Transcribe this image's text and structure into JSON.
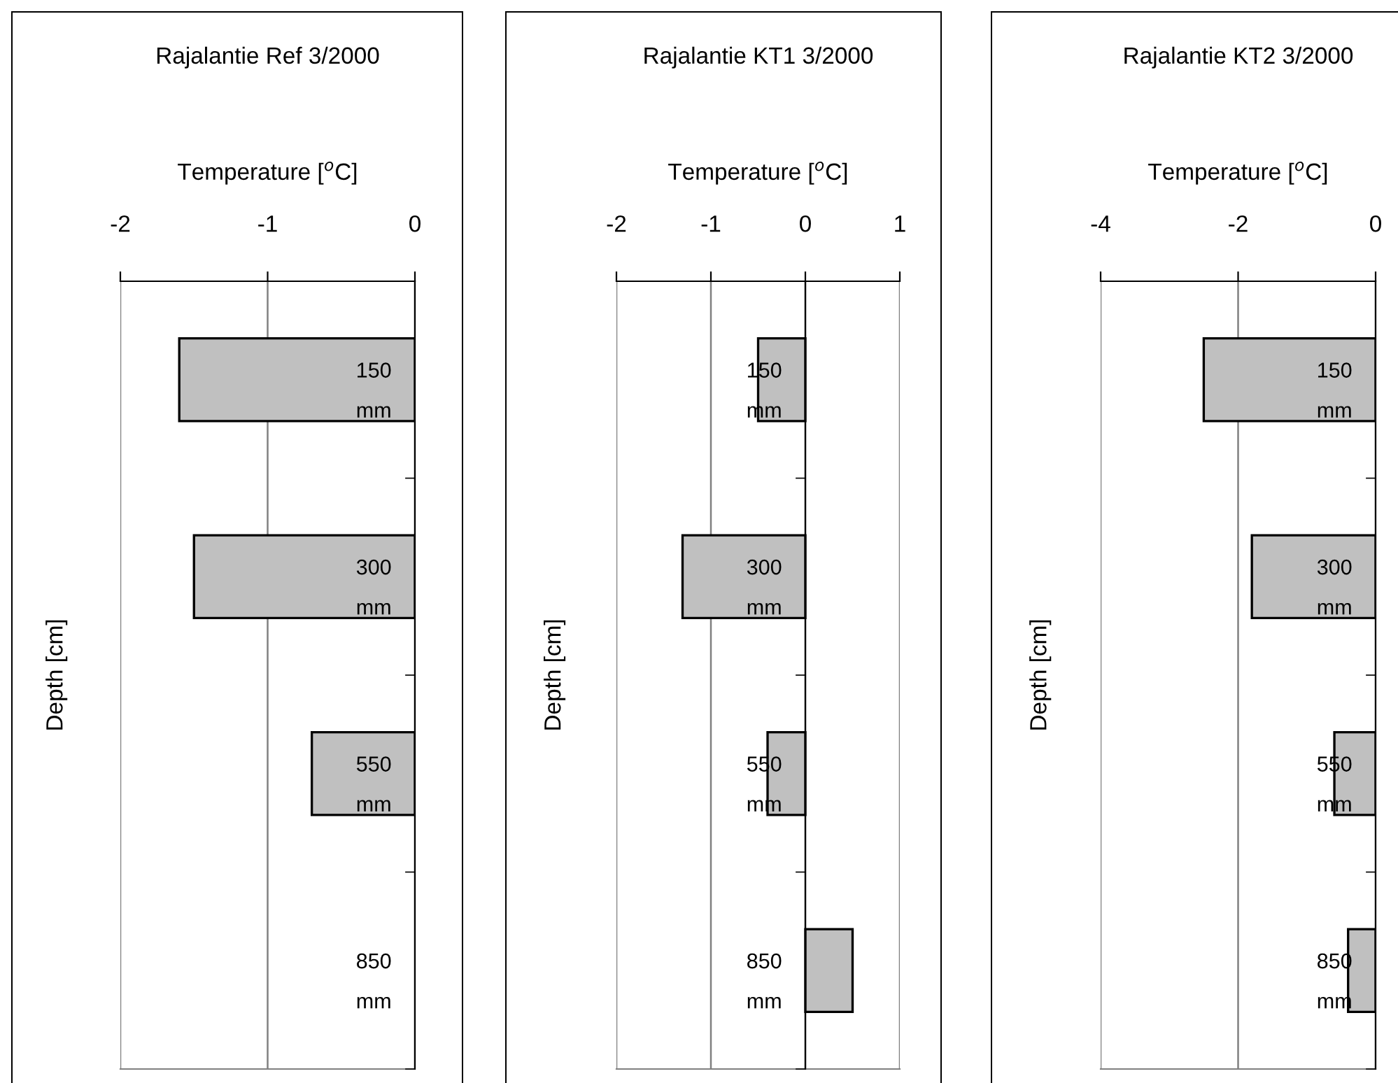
{
  "chart_data": [
    {
      "type": "bar",
      "orientation": "horizontal",
      "title": "Rajalantie Ref 3/2000",
      "xlabel": "Temperature [$^{o}$C]",
      "ylabel": "Depth [cm]",
      "categories": [
        "150\nmm",
        "300\nmm",
        "550\nmm",
        "850\nmm"
      ],
      "values": [
        -1.6,
        -1.5,
        -0.7,
        null
      ],
      "color": "#c0c0c0",
      "xlim": [
        -2,
        0
      ],
      "xticks": [
        -2,
        -1,
        0
      ],
      "grid": "x"
    },
    {
      "type": "bar",
      "orientation": "horizontal",
      "title": "Rajalantie KT1 3/2000",
      "xlabel": "Temperature [$^{o}$C]",
      "ylabel": "Depth [cm]",
      "categories": [
        "150\nmm",
        "300\nmm",
        "550\nmm",
        "850\nmm"
      ],
      "values": [
        -0.5,
        -1.3,
        -0.4,
        0.5
      ],
      "color": "#c0c0c0",
      "xlim": [
        -2,
        1
      ],
      "xticks": [
        -2,
        -1,
        0,
        1
      ],
      "grid": "x"
    },
    {
      "type": "bar",
      "orientation": "horizontal",
      "title": "Rajalantie KT2 3/2000",
      "xlabel": "Temperature [$^{o}$C]",
      "ylabel": "Depth [cm]",
      "categories": [
        "150\nmm",
        "300\nmm",
        "550\nmm",
        "850\nmm"
      ],
      "values": [
        -2.5,
        -1.8,
        -0.6,
        -0.4
      ],
      "color": "#c0c0c0",
      "xlim": [
        -4,
        0
      ],
      "xticks": [
        -4,
        -2,
        0
      ],
      "grid": "x"
    }
  ]
}
